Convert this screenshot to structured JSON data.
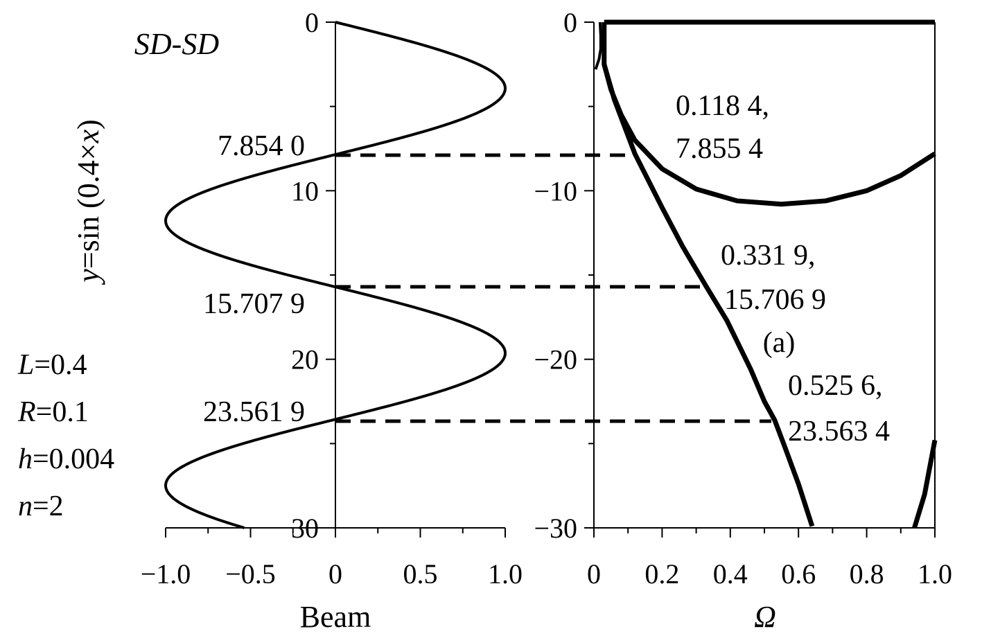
{
  "chart_data": [
    {
      "type": "line",
      "xlabel": "Beam",
      "ylabel": "y=sin (0.4×x)",
      "ylabel_parts": [
        "y",
        "=sin (0.4×",
        "x",
        ")"
      ],
      "label": "SD-SD",
      "xlim": [
        -1.0,
        1.0
      ],
      "ylim": [
        0,
        30
      ],
      "x_ticks": [
        "−1.0",
        "−0.5",
        "0",
        "0.5",
        "1.0"
      ],
      "x_tick_values": [
        -1.0,
        -0.5,
        0,
        0.5,
        1.0
      ],
      "y_ticks": [
        "0",
        "10",
        "20",
        "30"
      ],
      "y_tick_values": [
        0,
        10,
        20,
        30
      ],
      "series": [
        {
          "function": "sin(0.4*y)",
          "y_range": [
            0,
            30
          ],
          "color": "#000000"
        }
      ],
      "annotations": [
        {
          "text": "7.854 0",
          "y": 7.854
        },
        {
          "text": "15.707 9",
          "y": 15.7079
        },
        {
          "text": "23.561 9",
          "y": 23.5619
        }
      ],
      "params": [
        {
          "name": "L",
          "value": "=0.4"
        },
        {
          "name": "R",
          "value": "=0.1"
        },
        {
          "name": "h",
          "value": "=0.004"
        },
        {
          "name": "n",
          "value": "=2"
        }
      ]
    },
    {
      "type": "line",
      "xlabel": "Ω",
      "xlim": [
        0,
        1.0
      ],
      "ylim": [
        -30,
        0
      ],
      "x_ticks": [
        "0",
        "0.2",
        "0.4",
        "0.6",
        "0.8",
        "1.0"
      ],
      "x_tick_values": [
        0,
        0.2,
        0.4,
        0.6,
        0.8,
        1.0
      ],
      "y_ticks": [
        "0",
        "−10",
        "−20",
        "−30"
      ],
      "y_tick_values": [
        0,
        -10,
        -20,
        -30
      ],
      "series": [
        {
          "points": [
            [
              0.03,
              0
            ],
            [
              1.0,
              0
            ]
          ]
        },
        {
          "points": [
            [
              0.018,
              0
            ],
            [
              0.02,
              -0.8
            ],
            [
              0.02,
              -1.6
            ],
            [
              0.015,
              -2.2
            ],
            [
              0.005,
              -2.8
            ]
          ]
        },
        {
          "points": [
            [
              0.03,
              0
            ],
            [
              0.03,
              -1.0
            ],
            [
              0.03,
              -2.5
            ],
            [
              0.05,
              -4.0
            ],
            [
              0.08,
              -5.5
            ],
            [
              0.12,
              -7.0
            ],
            [
              0.2,
              -8.7
            ],
            [
              0.3,
              -9.9
            ],
            [
              0.42,
              -10.6
            ],
            [
              0.55,
              -10.8
            ],
            [
              0.68,
              -10.6
            ],
            [
              0.8,
              -10.0
            ],
            [
              0.9,
              -9.1
            ],
            [
              1.0,
              -7.8
            ]
          ]
        },
        {
          "points": [
            [
              0.03,
              -2.5
            ],
            [
              0.06,
              -4.6
            ],
            [
              0.12,
              -7.8
            ],
            [
              0.2,
              -11.0
            ],
            [
              0.26,
              -13.3
            ],
            [
              0.33,
              -15.7
            ],
            [
              0.39,
              -17.7
            ],
            [
              0.46,
              -20.6
            ],
            [
              0.5,
              -22.5
            ],
            [
              0.53,
              -23.6
            ],
            [
              0.56,
              -25.2
            ],
            [
              0.6,
              -27.4
            ],
            [
              0.64,
              -29.9
            ]
          ]
        },
        {
          "points": [
            [
              0.94,
              -30
            ],
            [
              0.97,
              -28.0
            ],
            [
              1.0,
              -24.8
            ]
          ]
        }
      ],
      "annotations": [
        {
          "lines": [
            "0.118 4,",
            "7.855 4"
          ],
          "x": 0.1184,
          "y": -7.8554
        },
        {
          "lines": [
            "0.331 9,",
            "15.706 9"
          ],
          "x": 0.3319,
          "y": -15.7069
        },
        {
          "lines": [
            "0.525 6,",
            "23.563 4"
          ],
          "x": 0.5256,
          "y": -23.5634
        }
      ],
      "panel_label": "(a)"
    }
  ]
}
